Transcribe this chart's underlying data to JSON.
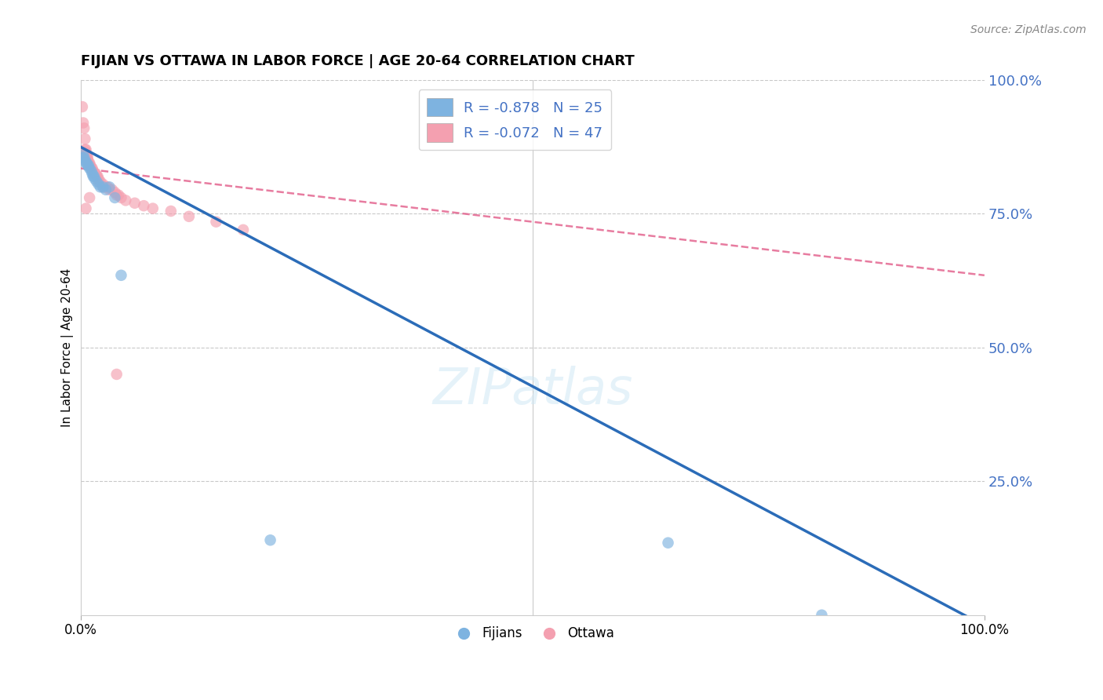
{
  "title": "FIJIAN VS OTTAWA IN LABOR FORCE | AGE 20-64 CORRELATION CHART",
  "source": "Source: ZipAtlas.com",
  "ylabel": "In Labor Force | Age 20-64",
  "right_yticks": [
    "100.0%",
    "75.0%",
    "50.0%",
    "25.0%"
  ],
  "right_ytick_vals": [
    1.0,
    0.75,
    0.5,
    0.25
  ],
  "legend_r_blue": "R = -0.878",
  "legend_n_blue": "N = 25",
  "legend_r_pink": "R = -0.072",
  "legend_n_pink": "N = 47",
  "legend_fijians": "Fijians",
  "legend_ottawa": "Ottawa",
  "blue_color": "#7EB3E0",
  "pink_color": "#F4A0B0",
  "blue_line_color": "#2B6CB8",
  "pink_line_color": "#E05080",
  "fijian_x": [
    0.002,
    0.003,
    0.004,
    0.005,
    0.006,
    0.007,
    0.008,
    0.009,
    0.01,
    0.012,
    0.013,
    0.014,
    0.015,
    0.016,
    0.018,
    0.02,
    0.022,
    0.025,
    0.028,
    0.032,
    0.038,
    0.045,
    0.21,
    0.65,
    0.82
  ],
  "fijian_y": [
    0.855,
    0.86,
    0.855,
    0.85,
    0.845,
    0.845,
    0.84,
    0.84,
    0.835,
    0.83,
    0.825,
    0.82,
    0.82,
    0.815,
    0.81,
    0.805,
    0.8,
    0.8,
    0.795,
    0.8,
    0.78,
    0.635,
    0.14,
    0.135,
    0.0
  ],
  "ottawa_x": [
    0.002,
    0.003,
    0.004,
    0.005,
    0.005,
    0.006,
    0.006,
    0.007,
    0.007,
    0.008,
    0.008,
    0.009,
    0.01,
    0.01,
    0.011,
    0.012,
    0.013,
    0.014,
    0.015,
    0.016,
    0.017,
    0.018,
    0.019,
    0.02,
    0.02,
    0.022,
    0.025,
    0.025,
    0.028,
    0.03,
    0.032,
    0.035,
    0.038,
    0.04,
    0.042,
    0.045,
    0.05,
    0.06,
    0.07,
    0.08,
    0.1,
    0.12,
    0.15,
    0.18,
    0.006,
    0.01,
    0.04
  ],
  "ottawa_y": [
    0.95,
    0.92,
    0.91,
    0.89,
    0.87,
    0.87,
    0.865,
    0.86,
    0.855,
    0.855,
    0.85,
    0.845,
    0.845,
    0.84,
    0.84,
    0.835,
    0.835,
    0.83,
    0.825,
    0.825,
    0.825,
    0.82,
    0.82,
    0.815,
    0.81,
    0.81,
    0.805,
    0.8,
    0.8,
    0.8,
    0.795,
    0.795,
    0.79,
    0.785,
    0.785,
    0.78,
    0.775,
    0.77,
    0.765,
    0.76,
    0.755,
    0.745,
    0.735,
    0.72,
    0.76,
    0.78,
    0.45
  ],
  "xlim": [
    0.0,
    1.0
  ],
  "ylim": [
    0.0,
    1.0
  ],
  "background_color": "#FFFFFF",
  "grid_color": "#BBBBBB",
  "watermark": "ZIPatlas"
}
